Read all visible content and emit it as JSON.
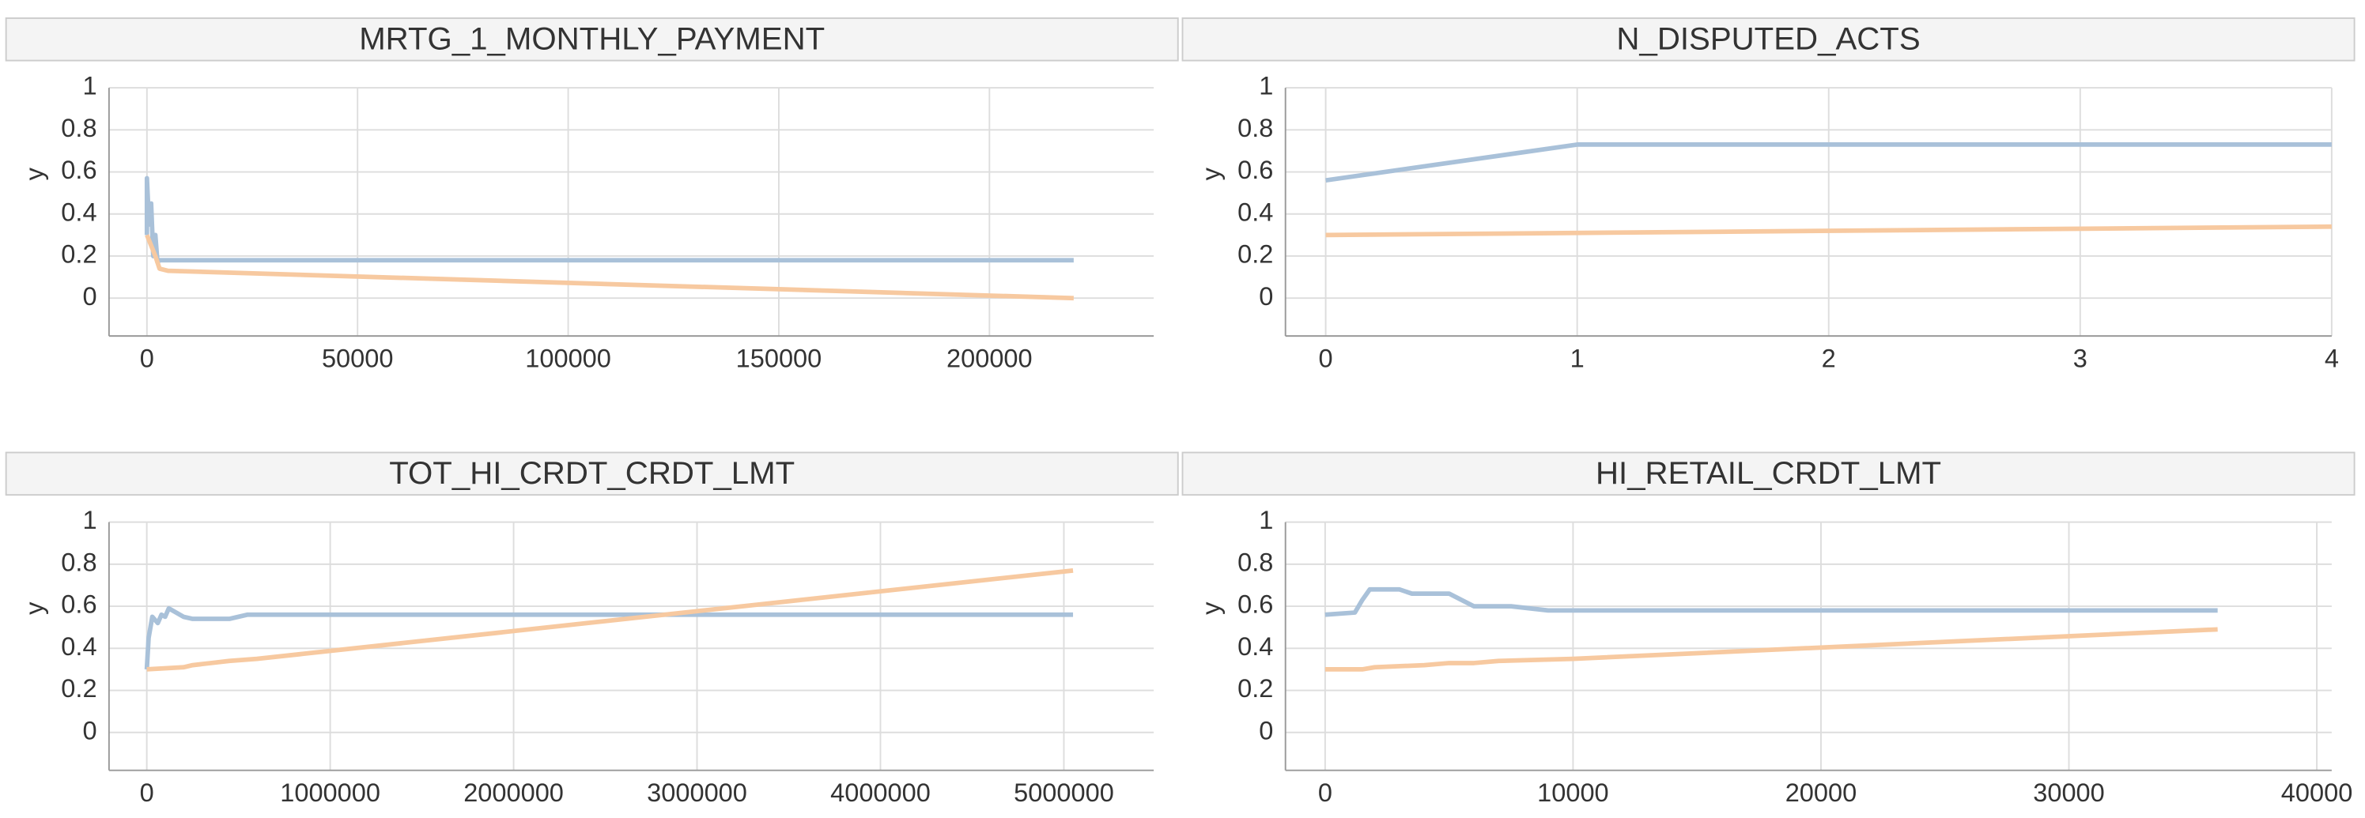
{
  "chart_data": [
    {
      "type": "line",
      "title": "MRTG_1_MONTHLY_PAYMENT",
      "ylabel": "y",
      "grid": true,
      "xlim": [
        -9000,
        239000
      ],
      "xticks": [
        0,
        50000,
        100000,
        150000,
        200000
      ],
      "ylim": [
        -0.18,
        1
      ],
      "yticks": [
        0,
        0.2,
        0.4,
        0.6,
        0.8,
        1
      ],
      "series": [
        {
          "color": "#a9c1d9",
          "x": [
            0,
            0,
            500,
            1000,
            1500,
            2000,
            2500,
            3000,
            220000
          ],
          "values": [
            0.3,
            0.57,
            0.35,
            0.45,
            0.2,
            0.3,
            0.17,
            0.18,
            0.18
          ]
        },
        {
          "color": "#f7c9a0",
          "x": [
            0,
            1000,
            2000,
            3000,
            5000,
            220000
          ],
          "values": [
            0.3,
            0.25,
            0.2,
            0.14,
            0.13,
            0.0
          ]
        }
      ]
    },
    {
      "type": "line",
      "title": "N_DISPUTED_ACTS",
      "ylabel": "y",
      "grid": true,
      "xlim": [
        -0.16,
        4
      ],
      "xticks": [
        0,
        1,
        2,
        3,
        4
      ],
      "ylim": [
        -0.18,
        1
      ],
      "yticks": [
        0,
        0.2,
        0.4,
        0.6,
        0.8,
        1
      ],
      "series": [
        {
          "color": "#a9c1d9",
          "x": [
            0,
            1,
            4
          ],
          "values": [
            0.56,
            0.73,
            0.73
          ]
        },
        {
          "color": "#f7c9a0",
          "x": [
            0,
            4
          ],
          "values": [
            0.3,
            0.34
          ]
        }
      ]
    },
    {
      "type": "line",
      "title": "TOT_HI_CRDT_CRDT_LMT",
      "ylabel": "y",
      "grid": true,
      "xlim": [
        -206000,
        5490000
      ],
      "xticks": [
        0,
        1000000,
        2000000,
        3000000,
        4000000,
        5000000
      ],
      "ylim": [
        -0.18,
        1
      ],
      "yticks": [
        0,
        0.2,
        0.4,
        0.6,
        0.8,
        1
      ],
      "series": [
        {
          "color": "#a9c1d9",
          "x": [
            0,
            10000,
            30000,
            60000,
            80000,
            100000,
            120000,
            200000,
            250000,
            450000,
            550000,
            5050000
          ],
          "values": [
            0.3,
            0.45,
            0.55,
            0.52,
            0.56,
            0.55,
            0.59,
            0.55,
            0.54,
            0.54,
            0.56,
            0.56
          ]
        },
        {
          "color": "#f7c9a0",
          "x": [
            0,
            200000,
            250000,
            350000,
            450000,
            600000,
            5050000
          ],
          "values": [
            0.3,
            0.31,
            0.32,
            0.33,
            0.34,
            0.35,
            0.77
          ]
        }
      ]
    },
    {
      "type": "line",
      "title": "HI_RETAIL_CRDT_LMT",
      "ylabel": "y",
      "grid": true,
      "xlim": [
        -1600,
        40600
      ],
      "xticks": [
        0,
        10000,
        20000,
        30000,
        40000
      ],
      "ylim": [
        -0.18,
        1
      ],
      "yticks": [
        0,
        0.2,
        0.4,
        0.6,
        0.8,
        1
      ],
      "series": [
        {
          "color": "#a9c1d9",
          "x": [
            0,
            1200,
            1500,
            1800,
            3000,
            3500,
            5000,
            6000,
            7500,
            9000,
            36000
          ],
          "values": [
            0.56,
            0.57,
            0.63,
            0.68,
            0.68,
            0.66,
            0.66,
            0.6,
            0.6,
            0.58,
            0.58
          ]
        },
        {
          "color": "#f7c9a0",
          "x": [
            0,
            1500,
            2000,
            4000,
            5000,
            6000,
            7000,
            10000,
            36000
          ],
          "values": [
            0.3,
            0.3,
            0.31,
            0.32,
            0.33,
            0.33,
            0.34,
            0.35,
            0.49
          ]
        }
      ]
    }
  ]
}
